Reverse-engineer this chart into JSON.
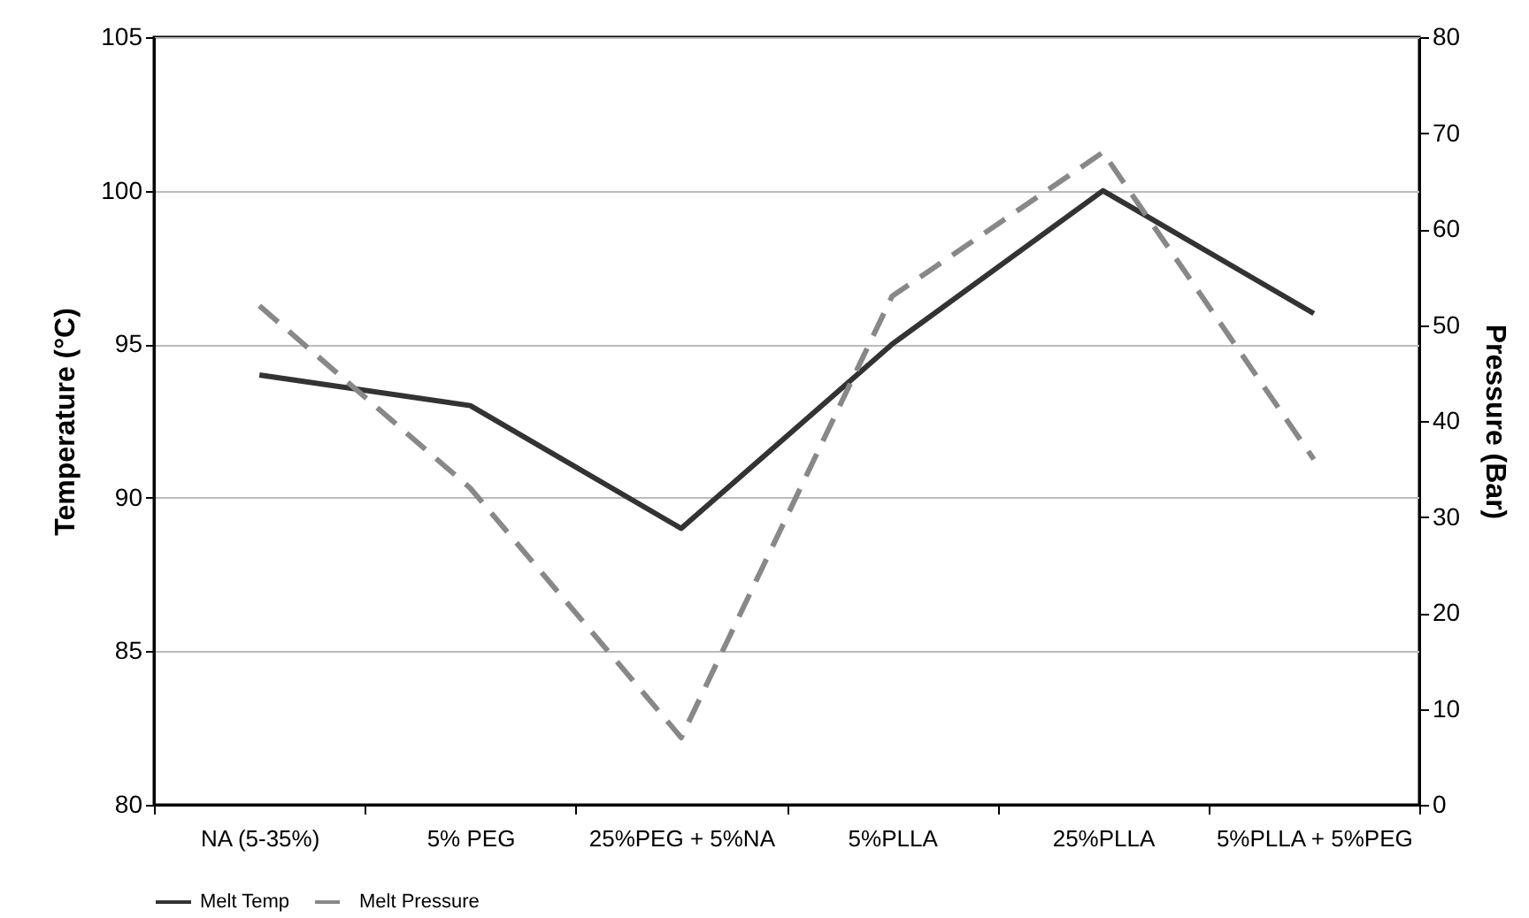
{
  "chart_data": {
    "type": "line",
    "categories": [
      "NA (5-35%)",
      "5% PEG",
      "25%PEG + 5%NA",
      "5%PLLA",
      "25%PLLA",
      "5%PLLA + 5%PEG"
    ],
    "ylabel": "Temperature (°C)",
    "y2label": "Pressure (Bar)",
    "ylim": [
      80,
      105
    ],
    "yticks": [
      80,
      85,
      90,
      95,
      100,
      105
    ],
    "y2lim": [
      0,
      80
    ],
    "y2ticks": [
      0,
      10,
      20,
      30,
      40,
      50,
      60,
      70,
      80
    ],
    "grid": "y",
    "legend": "bottom",
    "marker": "none",
    "series": [
      {
        "name": "Melt Temp",
        "color": "#333333",
        "line_style": "solid",
        "values": [
          94,
          93,
          89,
          95,
          100,
          96
        ]
      },
      {
        "name": "Melt Pressure",
        "color": "#888888",
        "line_style": "dashed",
        "axis": "y2",
        "values": [
          52,
          33,
          7,
          53,
          68,
          36
        ]
      }
    ]
  }
}
